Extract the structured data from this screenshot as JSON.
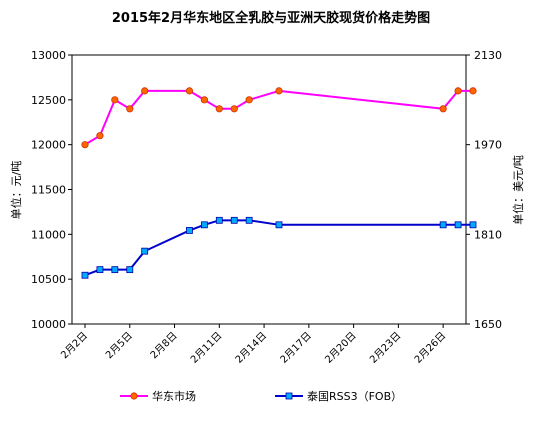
{
  "chart_data": {
    "type": "line",
    "title": "2015年2月华东地区全乳胶与亚洲天胶现货价格走势图",
    "ylabel_left": "单位：元/吨",
    "ylabel_right": "单位：美元/吨",
    "y_left_range": [
      10000,
      13000
    ],
    "y_left_ticks": [
      "10000",
      "10500",
      "11000",
      "11500",
      "12000",
      "12500",
      "13000"
    ],
    "y_right_range": [
      1650,
      2130
    ],
    "y_right_ticks": [
      "1650",
      "1810",
      "1970",
      "2130"
    ],
    "x_range": [
      2,
      28
    ],
    "x_ticks": [
      {
        "day": 2,
        "label": "2月2日"
      },
      {
        "day": 5,
        "label": "2月5日"
      },
      {
        "day": 8,
        "label": "2月8日"
      },
      {
        "day": 11,
        "label": "2月11日"
      },
      {
        "day": 14,
        "label": "2月14日"
      },
      {
        "day": 17,
        "label": "2月17日"
      },
      {
        "day": 20,
        "label": "2月20日"
      },
      {
        "day": 23,
        "label": "2月23日"
      },
      {
        "day": 26,
        "label": "2月26日"
      }
    ],
    "grid": false,
    "legend_position": "bottom",
    "series": [
      {
        "name": "华东市场",
        "axis": "left",
        "color": "#ff00ff",
        "marker_fill": "#ff6600",
        "marker": "circle",
        "x": [
          2,
          3,
          4,
          5,
          6,
          9,
          10,
          11,
          12,
          13,
          15,
          26,
          27,
          28
        ],
        "y": [
          12000,
          12100,
          12500,
          12400,
          12600,
          12600,
          12500,
          12400,
          12400,
          12500,
          12600,
          12400,
          12600,
          12600
        ]
      },
      {
        "name": "泰国RSS3（FOB）",
        "axis": "right",
        "color": "#0000cc",
        "marker_fill": "#00aaff",
        "marker": "square",
        "x": [
          2,
          3,
          4,
          5,
          6,
          9,
          10,
          11,
          12,
          13,
          15,
          26,
          27,
          28
        ],
        "y": [
          1737,
          1747,
          1747,
          1747,
          1780,
          1817,
          1827,
          1835,
          1835,
          1835,
          1827,
          1827,
          1827,
          1827
        ]
      }
    ]
  }
}
